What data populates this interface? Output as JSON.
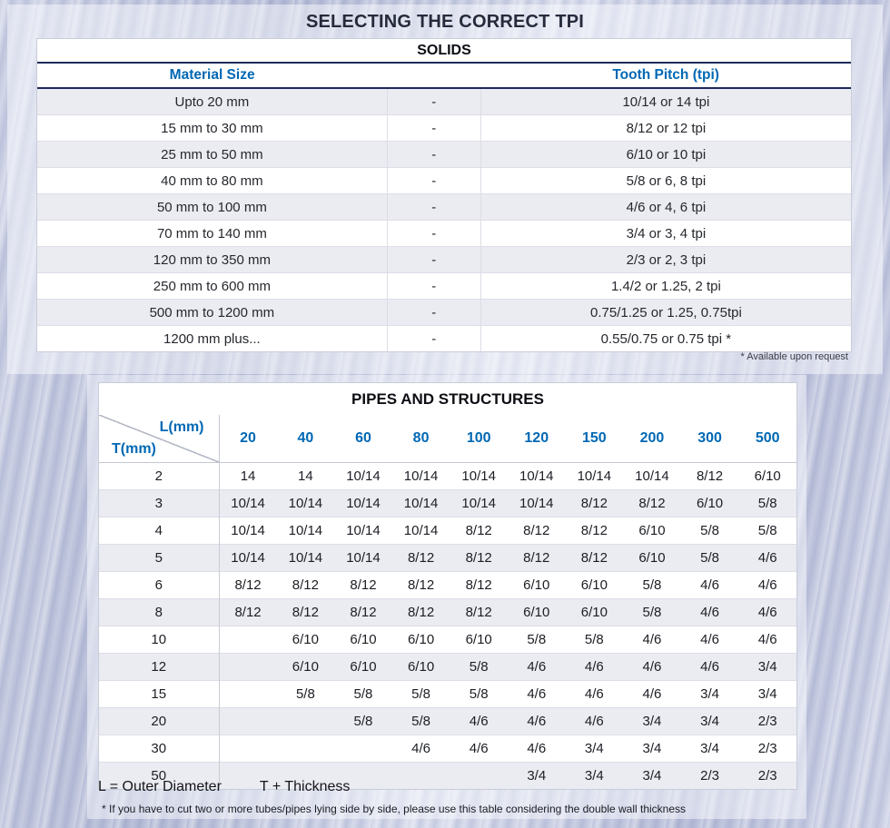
{
  "page": {
    "title": "SELECTING THE CORRECT TPI"
  },
  "solids": {
    "title": "SOLIDS",
    "header": {
      "material": "Material Size",
      "separator": "",
      "pitch": "Tooth Pitch (tpi)"
    },
    "rows": [
      {
        "material": "Upto 20 mm",
        "sep": "-",
        "pitch": "10/14 or 14 tpi"
      },
      {
        "material": "15 mm to 30 mm",
        "sep": "-",
        "pitch": "8/12 or 12 tpi"
      },
      {
        "material": "25 mm to 50 mm",
        "sep": "-",
        "pitch": "6/10 or 10 tpi"
      },
      {
        "material": "40 mm to 80 mm",
        "sep": "-",
        "pitch": "5/8 or 6, 8 tpi"
      },
      {
        "material": "50 mm to 100 mm",
        "sep": "-",
        "pitch": "4/6 or 4, 6 tpi"
      },
      {
        "material": "70 mm to 140 mm",
        "sep": "-",
        "pitch": "3/4 or 3, 4 tpi"
      },
      {
        "material": "120 mm to 350 mm",
        "sep": "-",
        "pitch": "2/3 or 2, 3 tpi"
      },
      {
        "material": "250 mm to 600 mm",
        "sep": "-",
        "pitch": "1.4/2 or 1.25, 2 tpi"
      },
      {
        "material": "500 mm to 1200 mm",
        "sep": "-",
        "pitch": "0.75/1.25 or 1.25, 0.75tpi"
      },
      {
        "material": "1200 mm plus...",
        "sep": "-",
        "pitch": "0.55/0.75 or 0.75 tpi *"
      }
    ],
    "footnote": "* Available upon request"
  },
  "pipes": {
    "title": "PIPES AND STRUCTURES",
    "corner": {
      "top_right": "L(mm)",
      "bottom_left": "T(mm)"
    },
    "columns": [
      "20",
      "40",
      "60",
      "80",
      "100",
      "120",
      "150",
      "200",
      "300",
      "500"
    ],
    "rows": [
      {
        "t": "2",
        "values": [
          "14",
          "14",
          "10/14",
          "10/14",
          "10/14",
          "10/14",
          "10/14",
          "10/14",
          "8/12",
          "6/10"
        ]
      },
      {
        "t": "3",
        "values": [
          "10/14",
          "10/14",
          "10/14",
          "10/14",
          "10/14",
          "10/14",
          "8/12",
          "8/12",
          "6/10",
          "5/8"
        ]
      },
      {
        "t": "4",
        "values": [
          "10/14",
          "10/14",
          "10/14",
          "10/14",
          "8/12",
          "8/12",
          "8/12",
          "6/10",
          "5/8",
          "5/8"
        ]
      },
      {
        "t": "5",
        "values": [
          "10/14",
          "10/14",
          "10/14",
          "8/12",
          "8/12",
          "8/12",
          "8/12",
          "6/10",
          "5/8",
          "4/6"
        ]
      },
      {
        "t": "6",
        "values": [
          "8/12",
          "8/12",
          "8/12",
          "8/12",
          "8/12",
          "6/10",
          "6/10",
          "5/8",
          "4/6",
          "4/6"
        ]
      },
      {
        "t": "8",
        "values": [
          "8/12",
          "8/12",
          "8/12",
          "8/12",
          "8/12",
          "6/10",
          "6/10",
          "5/8",
          "4/6",
          "4/6"
        ]
      },
      {
        "t": "10",
        "values": [
          "",
          "6/10",
          "6/10",
          "6/10",
          "6/10",
          "5/8",
          "5/8",
          "4/6",
          "4/6",
          "4/6"
        ]
      },
      {
        "t": "12",
        "values": [
          "",
          "6/10",
          "6/10",
          "6/10",
          "5/8",
          "4/6",
          "4/6",
          "4/6",
          "4/6",
          "3/4"
        ]
      },
      {
        "t": "15",
        "values": [
          "",
          "5/8",
          "5/8",
          "5/8",
          "5/8",
          "4/6",
          "4/6",
          "4/6",
          "3/4",
          "3/4"
        ]
      },
      {
        "t": "20",
        "values": [
          "",
          "",
          "5/8",
          "5/8",
          "4/6",
          "4/6",
          "4/6",
          "3/4",
          "3/4",
          "2/3"
        ]
      },
      {
        "t": "30",
        "values": [
          "",
          "",
          "",
          "4/6",
          "4/6",
          "4/6",
          "3/4",
          "3/4",
          "3/4",
          "2/3"
        ]
      },
      {
        "t": "50",
        "values": [
          "",
          "",
          "",
          "",
          "",
          "3/4",
          "3/4",
          "3/4",
          "2/3",
          "2/3"
        ]
      }
    ],
    "legend": {
      "l": "L = Outer Diameter",
      "t": "T + Thickness"
    },
    "footnote": "* If you have to cut two or more tubes/pipes lying side by side, please use this table considering the double wall thickness"
  },
  "colors": {
    "navy": "#1d2a5a",
    "blue": "#0068b4",
    "row_tint": "#ebebf2"
  }
}
